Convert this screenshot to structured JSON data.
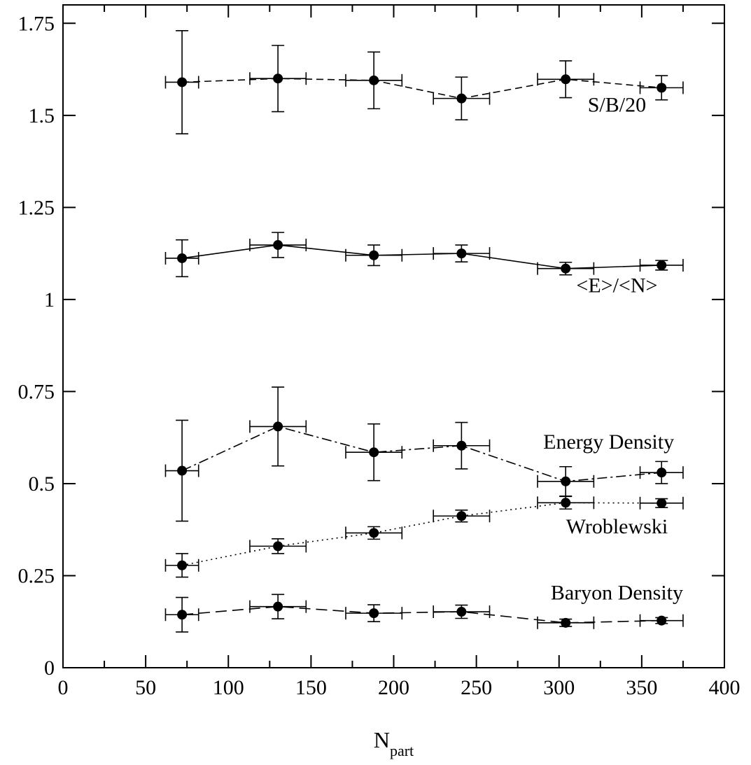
{
  "chart_data": {
    "type": "scatter",
    "title": "",
    "xlabel": "N",
    "xlabel_sub": "part",
    "ylabel": "",
    "xlim": [
      0,
      400
    ],
    "ylim": [
      0,
      1.8
    ],
    "grid": false,
    "x_ticks": [
      {
        "value": 0,
        "label": "0"
      },
      {
        "value": 50,
        "label": "50"
      },
      {
        "value": 100,
        "label": "100"
      },
      {
        "value": 150,
        "label": "150"
      },
      {
        "value": 200,
        "label": "200"
      },
      {
        "value": 250,
        "label": "250"
      },
      {
        "value": 300,
        "label": "300"
      },
      {
        "value": 350,
        "label": "350"
      },
      {
        "value": 400,
        "label": "400"
      }
    ],
    "y_ticks": [
      {
        "value": 0,
        "label": "0"
      },
      {
        "value": 0.25,
        "label": "0.25"
      },
      {
        "value": 0.5,
        "label": "0.5"
      },
      {
        "value": 0.75,
        "label": "0.75"
      },
      {
        "value": 1,
        "label": "1"
      },
      {
        "value": 1.25,
        "label": "1.25"
      },
      {
        "value": 1.5,
        "label": "1.5"
      },
      {
        "value": 1.75,
        "label": "1.75"
      }
    ],
    "series": [
      {
        "name": "S/B/20",
        "line_style": "dashed",
        "label_anchor": {
          "x": 335,
          "y": 1.51
        },
        "points": [
          {
            "x": 72,
            "y": 1.59,
            "xerr": 10,
            "yerr": 0.14
          },
          {
            "x": 130,
            "y": 1.6,
            "xerr": 17,
            "yerr": 0.09
          },
          {
            "x": 188,
            "y": 1.595,
            "xerr": 17,
            "yerr": 0.077
          },
          {
            "x": 241,
            "y": 1.546,
            "xerr": 17,
            "yerr": 0.058
          },
          {
            "x": 304,
            "y": 1.598,
            "xerr": 17,
            "yerr": 0.05
          },
          {
            "x": 362,
            "y": 1.575,
            "xerr": 13,
            "yerr": 0.033
          }
        ]
      },
      {
        "name": "<E>/<N>",
        "line_style": "solid",
        "label_anchor": {
          "x": 335,
          "y": 1.02
        },
        "points": [
          {
            "x": 72,
            "y": 1.112,
            "xerr": 10,
            "yerr": 0.05
          },
          {
            "x": 130,
            "y": 1.148,
            "xerr": 17,
            "yerr": 0.034
          },
          {
            "x": 188,
            "y": 1.12,
            "xerr": 17,
            "yerr": 0.028
          },
          {
            "x": 241,
            "y": 1.125,
            "xerr": 17,
            "yerr": 0.023
          },
          {
            "x": 304,
            "y": 1.084,
            "xerr": 17,
            "yerr": 0.017
          },
          {
            "x": 362,
            "y": 1.093,
            "xerr": 13,
            "yerr": 0.013
          }
        ]
      },
      {
        "name": "Energy Density",
        "line_style": "dash-dot",
        "label_anchor": {
          "x": 330,
          "y": 0.595
        },
        "points": [
          {
            "x": 72,
            "y": 0.535,
            "xerr": 10,
            "yerr": 0.137
          },
          {
            "x": 130,
            "y": 0.655,
            "xerr": 17,
            "yerr": 0.107
          },
          {
            "x": 188,
            "y": 0.585,
            "xerr": 17,
            "yerr": 0.077
          },
          {
            "x": 241,
            "y": 0.603,
            "xerr": 17,
            "yerr": 0.063
          },
          {
            "x": 304,
            "y": 0.506,
            "xerr": 17,
            "yerr": 0.04
          },
          {
            "x": 362,
            "y": 0.53,
            "xerr": 13,
            "yerr": 0.03
          }
        ]
      },
      {
        "name": "Wroblewski",
        "line_style": "dotted",
        "label_anchor": {
          "x": 335,
          "y": 0.365
        },
        "points": [
          {
            "x": 72,
            "y": 0.278,
            "xerr": 10,
            "yerr": 0.032
          },
          {
            "x": 130,
            "y": 0.33,
            "xerr": 17,
            "yerr": 0.02
          },
          {
            "x": 188,
            "y": 0.366,
            "xerr": 17,
            "yerr": 0.017
          },
          {
            "x": 241,
            "y": 0.412,
            "xerr": 17,
            "yerr": 0.016
          },
          {
            "x": 304,
            "y": 0.448,
            "xerr": 17,
            "yerr": 0.017
          },
          {
            "x": 362,
            "y": 0.447,
            "xerr": 13,
            "yerr": 0.012
          }
        ]
      },
      {
        "name": "Baryon Density",
        "line_style": "long-dash",
        "label_anchor": {
          "x": 335,
          "y": 0.185
        },
        "points": [
          {
            "x": 72,
            "y": 0.144,
            "xerr": 10,
            "yerr": 0.047
          },
          {
            "x": 130,
            "y": 0.166,
            "xerr": 17,
            "yerr": 0.033
          },
          {
            "x": 188,
            "y": 0.148,
            "xerr": 17,
            "yerr": 0.023
          },
          {
            "x": 241,
            "y": 0.152,
            "xerr": 17,
            "yerr": 0.018
          },
          {
            "x": 304,
            "y": 0.122,
            "xerr": 17,
            "yerr": 0.01
          },
          {
            "x": 362,
            "y": 0.128,
            "xerr": 13,
            "yerr": 0.008
          }
        ]
      }
    ]
  }
}
